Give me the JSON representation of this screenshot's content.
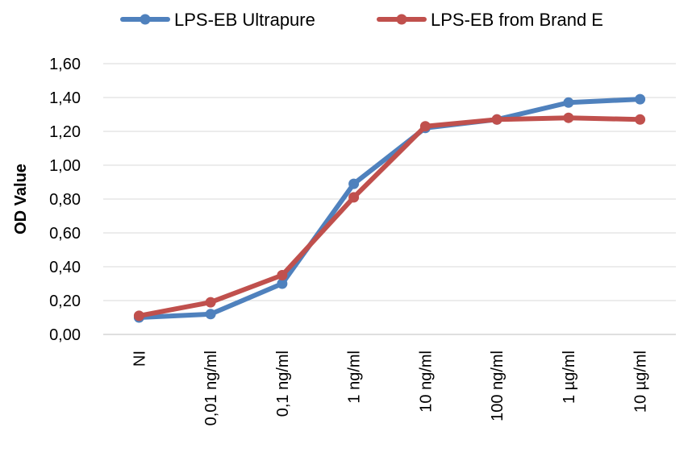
{
  "chart_data": {
    "type": "line",
    "title": "",
    "xlabel": "",
    "ylabel": "OD Value",
    "ylim": [
      0,
      1.6
    ],
    "yticks": [
      "0,00",
      "0,20",
      "0,40",
      "0,60",
      "0,80",
      "1,00",
      "1,20",
      "1,40",
      "1,60"
    ],
    "grid": "horizontal",
    "legend_position": "top",
    "categories": [
      "NI",
      "0,01 ng/ml",
      "0,1 ng/ml",
      "1 ng/ml",
      "10 ng/ml",
      "100 ng/ml",
      "1 µg/ml",
      "10 µg/ml"
    ],
    "series": [
      {
        "name": "LPS-EB Ultrapure",
        "color": "#4F81BD",
        "values": [
          0.1,
          0.12,
          0.3,
          0.89,
          1.22,
          1.27,
          1.37,
          1.39
        ]
      },
      {
        "name": "LPS-EB from Brand E",
        "color": "#C0504D",
        "values": [
          0.11,
          0.19,
          0.35,
          0.81,
          1.23,
          1.27,
          1.28,
          1.27
        ]
      }
    ]
  }
}
